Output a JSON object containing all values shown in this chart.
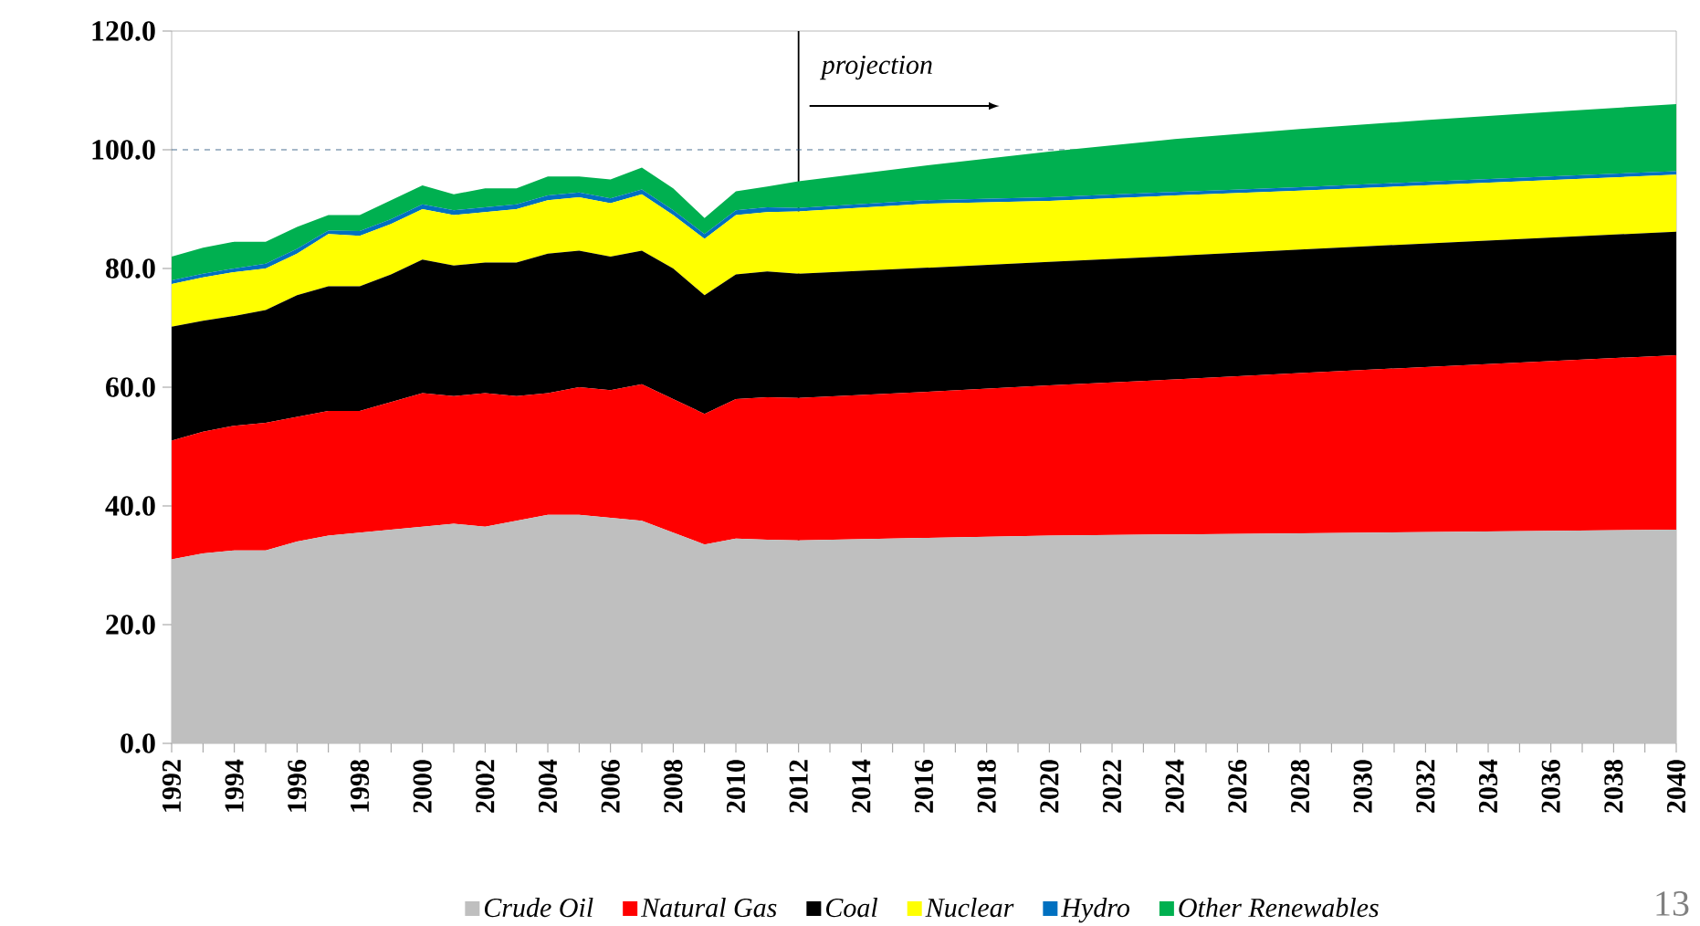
{
  "chart_data": {
    "type": "area",
    "stacked": true,
    "x": [
      1992,
      1993,
      1994,
      1995,
      1996,
      1997,
      1998,
      1999,
      2000,
      2001,
      2002,
      2003,
      2004,
      2005,
      2006,
      2007,
      2008,
      2009,
      2010,
      2011,
      2012,
      2016,
      2020,
      2024,
      2028,
      2032,
      2036,
      2040
    ],
    "series": [
      {
        "name": "Crude Oil",
        "color": "#bfbfbf",
        "values": [
          31,
          32,
          32.5,
          32.5,
          34,
          35,
          35.5,
          36,
          36.5,
          37,
          36.5,
          37.5,
          38.5,
          38.5,
          38,
          37.5,
          35.5,
          33.5,
          34.5,
          34.3,
          34.2,
          34.6,
          35,
          35.2,
          35.4,
          35.6,
          35.8,
          36
        ]
      },
      {
        "name": "Natural Gas",
        "color": "#ff0000",
        "values": [
          20,
          20.5,
          21,
          21.5,
          21,
          21,
          20.5,
          21.5,
          22.5,
          21.5,
          22.5,
          21,
          20.5,
          21.5,
          21.5,
          23,
          22.5,
          22,
          23.5,
          24,
          24,
          24.6,
          25.3,
          26.1,
          27,
          27.8,
          28.6,
          29.4
        ]
      },
      {
        "name": "Coal",
        "color": "#000000",
        "values": [
          19.2,
          18.7,
          18.5,
          19,
          20.5,
          21,
          21,
          21.5,
          22.5,
          22,
          22,
          22.5,
          23.5,
          23,
          22.5,
          22.5,
          22,
          20,
          21,
          21.2,
          20.9,
          20.9,
          20.8,
          20.8,
          20.8,
          20.8,
          20.8,
          20.8
        ]
      },
      {
        "name": "Nuclear",
        "color": "#ffff00",
        "values": [
          7.2,
          7.3,
          7.4,
          7,
          7,
          8.8,
          8.5,
          8.5,
          8.5,
          8.5,
          8.5,
          9,
          9,
          9,
          9,
          9.5,
          9,
          9.5,
          10,
          10,
          10.5,
          10.8,
          10.3,
          10.2,
          9.9,
          9.8,
          9.7,
          9.6
        ]
      },
      {
        "name": "Hydro",
        "color": "#0070c0",
        "values": [
          0.6,
          0.6,
          0.6,
          0.8,
          0.8,
          0.6,
          0.8,
          0.8,
          0.8,
          0.8,
          0.8,
          0.8,
          0.8,
          0.8,
          0.8,
          0.8,
          0.8,
          0.8,
          0.8,
          0.8,
          0.6,
          0.6,
          0.6,
          0.6,
          0.6,
          0.6,
          0.6,
          0.6
        ]
      },
      {
        "name": "Other Renewables",
        "color": "#00b050",
        "values": [
          4,
          4.4,
          4.5,
          3.7,
          3.7,
          2.6,
          2.7,
          3.2,
          3.2,
          2.7,
          3.2,
          2.7,
          3.2,
          2.7,
          3.2,
          3.7,
          3.7,
          2.7,
          3.2,
          3.5,
          4.5,
          5.8,
          7.7,
          8.9,
          9.8,
          10.4,
          10.9,
          11.3
        ]
      }
    ],
    "xlim": [
      1992,
      2040
    ],
    "xticks": [
      1992,
      {
        "value": 1993,
        "label": null
      },
      1994,
      {
        "value": 1995,
        "label": null
      },
      1996,
      {
        "value": 1997,
        "label": null
      },
      1998,
      {
        "value": 1999,
        "label": null
      },
      2000,
      {
        "value": 2001,
        "label": null
      },
      2002,
      {
        "value": 2003,
        "label": null
      },
      2004,
      {
        "value": 2005,
        "label": null
      },
      2006,
      {
        "value": 2007,
        "label": null
      },
      2008,
      {
        "value": 2009,
        "label": null
      },
      2010,
      {
        "value": 2011,
        "label": null
      },
      2012,
      {
        "value": 2013,
        "label": null
      },
      2014,
      {
        "value": 2015,
        "label": null
      },
      2016,
      {
        "value": 2017,
        "label": null
      },
      2018,
      {
        "value": 2019,
        "label": null
      },
      2020,
      {
        "value": 2021,
        "label": null
      },
      2022,
      {
        "value": 2023,
        "label": null
      },
      2024,
      {
        "value": 2025,
        "label": null
      },
      2026,
      {
        "value": 2027,
        "label": null
      },
      2028,
      {
        "value": 2029,
        "label": null
      },
      2030,
      {
        "value": 2031,
        "label": null
      },
      2032,
      {
        "value": 2033,
        "label": null
      },
      2034,
      {
        "value": 2035,
        "label": null
      },
      2036,
      {
        "value": 2037,
        "label": null
      },
      2038,
      {
        "value": 2039,
        "label": null
      },
      2040
    ],
    "ylim": [
      0,
      120
    ],
    "yticks": [
      {
        "value": 0,
        "label": "0.0"
      },
      {
        "value": 20,
        "label": "20.0"
      },
      {
        "value": 40,
        "label": "40.0"
      },
      {
        "value": 60,
        "label": "60.0"
      },
      {
        "value": 80,
        "label": "80.0"
      },
      {
        "value": 100,
        "label": "100.0"
      },
      {
        "value": 120,
        "label": "120.0"
      }
    ],
    "ref_lines": [
      {
        "axis": "y",
        "value": 100,
        "color": "#1f4e79",
        "line_style": "dashed"
      },
      {
        "axis": "x",
        "value": 2012,
        "color": "#000000",
        "line_style": "solid"
      }
    ],
    "annotations": [
      "projection",
      "13"
    ],
    "legend": "bottom",
    "marker": "none",
    "grid": false
  }
}
